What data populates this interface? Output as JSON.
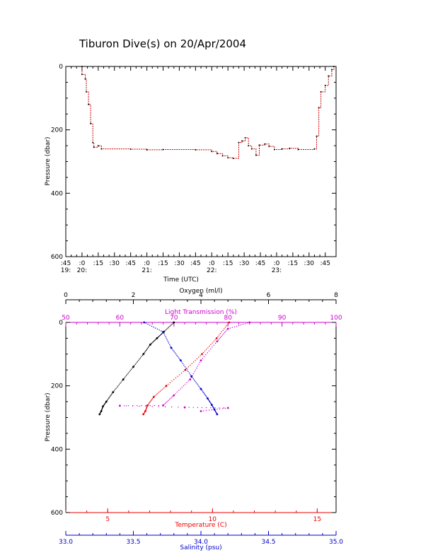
{
  "title": "Tiburon Dive(s) on 20/Apr/2004",
  "colors": {
    "axis": "#000000",
    "trace": "#cc0000",
    "oxygen": "#000000",
    "light_transmission": "#cc00cc",
    "temperature": "#ee0000",
    "salinity": "#0000cc"
  },
  "chart_data": [
    {
      "type": "line",
      "x_label": "Time (UTC)",
      "y_label": "Pressure (dbar)",
      "y_ticks": [
        "0",
        "200",
        "400",
        "600"
      ],
      "y_range": [
        0,
        600
      ],
      "y_inverted": true,
      "x_ticks_minutes": [
        ":45",
        ":0",
        ":15",
        ":30",
        ":45",
        ":0",
        ":15",
        ":30",
        ":45",
        ":0",
        ":15",
        ":30",
        ":45",
        ":0",
        ":15",
        ":30",
        ":45"
      ],
      "x_ticks_hours": [
        "19:",
        "20:",
        "",
        "",
        "",
        "21:",
        "",
        "",
        "",
        "22:",
        "",
        "",
        "",
        "23:",
        "",
        "",
        ""
      ],
      "x_range_utc": [
        "19:45",
        "23:55"
      ],
      "series": [
        {
          "points": [
            [
              "20:00",
              0
            ],
            [
              "20:00",
              25
            ],
            [
              "20:03",
              40
            ],
            [
              "20:04",
              80
            ],
            [
              "20:06",
              120
            ],
            [
              "20:08",
              180
            ],
            [
              "20:10",
              240
            ],
            [
              "20:11",
              255
            ],
            [
              "20:15",
              250
            ],
            [
              "20:18",
              260
            ],
            [
              "20:45",
              261
            ],
            [
              "21:00",
              263
            ],
            [
              "21:15",
              262
            ],
            [
              "21:45",
              263
            ],
            [
              "22:00",
              268
            ],
            [
              "22:05",
              275
            ],
            [
              "22:10",
              282
            ],
            [
              "22:15",
              288
            ],
            [
              "22:20",
              290
            ],
            [
              "22:25",
              240
            ],
            [
              "22:28",
              235
            ],
            [
              "22:31",
              225
            ],
            [
              "22:34",
              250
            ],
            [
              "22:37",
              260
            ],
            [
              "22:41",
              280
            ],
            [
              "22:44",
              248
            ],
            [
              "22:49",
              245
            ],
            [
              "22:53",
              252
            ],
            [
              "22:58",
              262
            ],
            [
              "23:05",
              260
            ],
            [
              "23:12",
              258
            ],
            [
              "23:20",
              262
            ],
            [
              "23:35",
              260
            ],
            [
              "23:37",
              220
            ],
            [
              "23:39",
              130
            ],
            [
              "23:41",
              80
            ],
            [
              "23:45",
              60
            ],
            [
              "23:48",
              30
            ],
            [
              "23:51",
              10
            ],
            [
              "23:53",
              0
            ]
          ]
        }
      ]
    },
    {
      "type": "scatter",
      "y_label": "Pressure (dbar)",
      "y_ticks": [
        "0",
        "200",
        "400",
        "600"
      ],
      "y_range": [
        0,
        600
      ],
      "y_inverted": true,
      "axes": [
        {
          "name": "Oxygen (ml/l)",
          "position": "top",
          "range": [
            0,
            8
          ],
          "ticks": [
            "0",
            "2",
            "4",
            "6",
            "8"
          ]
        },
        {
          "name": "Light Transmission (%)",
          "position": "top",
          "range": [
            50,
            100
          ],
          "ticks": [
            "50",
            "60",
            "70",
            "80",
            "90",
            "100"
          ]
        },
        {
          "name": "Temperature (C)",
          "position": "bottom",
          "range": [
            3,
            15.9
          ],
          "ticks": [
            "5",
            "10",
            "15"
          ]
        },
        {
          "name": "Salinity (psu)",
          "position": "bottom",
          "range": [
            33.0,
            35.0
          ],
          "ticks": [
            "33.0",
            "33.5",
            "34.0",
            "34.5",
            "35.0"
          ]
        }
      ],
      "series": [
        {
          "axis": "Oxygen (ml/l)",
          "points": [
            [
              3.2,
              0
            ],
            [
              2.9,
              30
            ],
            [
              2.7,
              50
            ],
            [
              2.5,
              70
            ],
            [
              2.3,
              100
            ],
            [
              2.0,
              140
            ],
            [
              1.7,
              180
            ],
            [
              1.4,
              220
            ],
            [
              1.2,
              250
            ],
            [
              1.1,
              265
            ],
            [
              1.05,
              280
            ],
            [
              1.0,
              290
            ]
          ]
        },
        {
          "axis": "Light Transmission (%)",
          "points": [
            [
              84,
              0
            ],
            [
              80,
              20
            ],
            [
              78,
              60
            ],
            [
              75,
              120
            ],
            [
              73,
              180
            ],
            [
              70,
              230
            ],
            [
              68,
              262
            ],
            [
              60,
              263
            ],
            [
              72,
              268
            ],
            [
              80,
              270
            ],
            [
              75,
              280
            ]
          ]
        },
        {
          "axis": "Temperature (C)",
          "points": [
            [
              10.8,
              0
            ],
            [
              10.2,
              50
            ],
            [
              9.5,
              100
            ],
            [
              8.7,
              150
            ],
            [
              7.8,
              200
            ],
            [
              7.2,
              235
            ],
            [
              6.9,
              262
            ],
            [
              6.8,
              280
            ],
            [
              6.7,
              290
            ]
          ]
        },
        {
          "axis": "Salinity (psu)",
          "points": [
            [
              33.58,
              0
            ],
            [
              33.72,
              30
            ],
            [
              33.78,
              80
            ],
            [
              33.85,
              120
            ],
            [
              33.93,
              170
            ],
            [
              34.0,
              210
            ],
            [
              34.05,
              240
            ],
            [
              34.08,
              260
            ],
            [
              34.1,
              275
            ],
            [
              34.12,
              290
            ]
          ]
        }
      ]
    }
  ]
}
